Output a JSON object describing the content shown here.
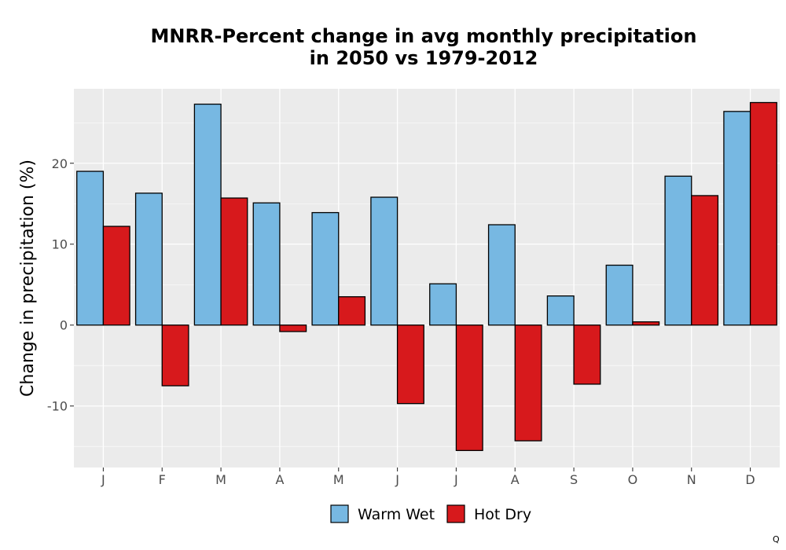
{
  "chart_data": {
    "type": "bar",
    "title": "MNRR-Percent change in avg monthly precipitation",
    "subtitle": "in 2050 vs 1979-2012",
    "xlabel": "",
    "ylabel": "Change in precipitation (%)",
    "ylim": [
      -17.6,
      29.2
    ],
    "yticks": [
      -10,
      0,
      10,
      20
    ],
    "grid": true,
    "legend_position": "bottom",
    "categories": [
      "J",
      "F",
      "M",
      "A",
      "M",
      "J",
      "J",
      "A",
      "S",
      "O",
      "N",
      "D"
    ],
    "series": [
      {
        "name": "Warm Wet",
        "color": "#77b8e2",
        "values": [
          19.0,
          16.3,
          27.3,
          15.1,
          13.9,
          15.8,
          5.1,
          12.4,
          3.6,
          7.4,
          18.4,
          26.4
        ]
      },
      {
        "name": "Hot Dry",
        "color": "#d7191c",
        "values": [
          12.2,
          -7.5,
          15.7,
          -0.8,
          3.5,
          -9.7,
          -15.5,
          -14.3,
          -7.3,
          0.4,
          16.0,
          27.5
        ]
      }
    ]
  },
  "corner_mark": "Q",
  "colors": {
    "panel_background": "#ebebeb",
    "grid_major": "#ffffff",
    "bar_outline": "#000000"
  }
}
